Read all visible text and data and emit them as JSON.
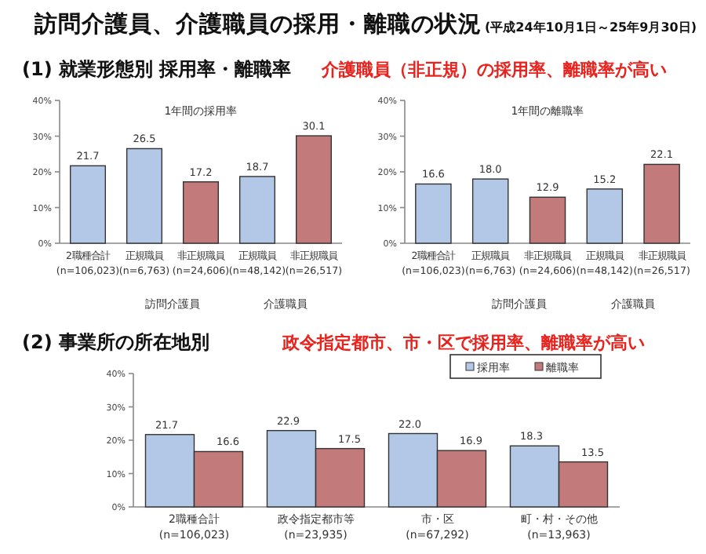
{
  "chart_data": [
    {
      "type": "other",
      "title": "訪問介護員、介護職員の採用・離職の状況",
      "subtitle": "(平成24年10月1日～25年9月30日)",
      "annotations": [
        "(1)  就業形態別  採用率・離職率",
        "介護職員（非正規）の採用率、離職率が高い",
        "(2)  事業所の所在地別",
        "政令指定都市、市・区で採用率、離職率が高い"
      ]
    },
    {
      "type": "bar",
      "title": "1年間の採用率",
      "categories": [
        "2職種合計\n(n=106,023)",
        "正規職員\n(n=6,763)",
        "非正規職員\n(n=24,606)",
        "正規職員\n(n=48,142)",
        "非正規職員\n(n=26,517)"
      ],
      "values": [
        21.7,
        26.5,
        17.2,
        18.7,
        30.1
      ],
      "colors": [
        "#b3c8e6",
        "#b3c8e6",
        "#c27a7a",
        "#b3c8e6",
        "#c27a7a"
      ],
      "ylim": [
        0,
        40
      ],
      "yticks": [
        {
          "value": 0,
          "label": "0%"
        },
        {
          "value": 10,
          "label": "10%"
        },
        {
          "value": 20,
          "label": "20%"
        },
        {
          "value": 30,
          "label": "30%"
        },
        {
          "value": 40,
          "label": "40%"
        }
      ],
      "data_labels": true,
      "annotations": [
        "訪問介護員",
        "介護職員"
      ]
    },
    {
      "type": "bar",
      "title": "1年間の離職率",
      "categories": [
        "2職種合計\n(n=106,023)",
        "正規職員\n(n=6,763)",
        "非正規職員\n(n=24,606)",
        "正規職員\n(n=48,142)",
        "非正規職員\n(n=26,517)"
      ],
      "values": [
        16.6,
        18.0,
        12.9,
        15.2,
        22.1
      ],
      "value_labels": [
        "16.6",
        "18.0",
        "12.9",
        "15.2",
        "22.1"
      ],
      "colors": [
        "#b3c8e6",
        "#b3c8e6",
        "#c27a7a",
        "#b3c8e6",
        "#c27a7a"
      ],
      "ylim": [
        0,
        40
      ],
      "yticks": [
        {
          "value": 0,
          "label": "0%"
        },
        {
          "value": 10,
          "label": "10%"
        },
        {
          "value": 20,
          "label": "20%"
        },
        {
          "value": 30,
          "label": "30%"
        },
        {
          "value": 40,
          "label": "40%"
        }
      ],
      "annotations": [
        "訪問介護員",
        "介護職員"
      ]
    },
    {
      "type": "bar",
      "categories": [
        "2職種合計\n(n=106,023)",
        "政令指定都市等\n(n=23,935)",
        "市・区\n(n=67,292)",
        "町・村・その他\n(n=13,963)"
      ],
      "series": [
        {
          "name": "採用率",
          "color": "#b3c8e6",
          "values": [
            21.7,
            22.9,
            22.0,
            18.3
          ],
          "value_labels": [
            "21.7",
            "22.9",
            "22.0",
            "18.3"
          ]
        },
        {
          "name": "離職率",
          "color": "#c27a7a",
          "values": [
            16.6,
            17.5,
            16.9,
            13.5
          ],
          "value_labels": [
            "16.6",
            "17.5",
            "16.9",
            "13.5"
          ]
        }
      ],
      "ylim": [
        0,
        40
      ],
      "yticks": [
        {
          "value": 0,
          "label": "0%"
        },
        {
          "value": 10,
          "label": "10%"
        },
        {
          "value": 20,
          "label": "20%"
        },
        {
          "value": 30,
          "label": "30%"
        },
        {
          "value": 40,
          "label": "40%"
        }
      ],
      "legend": "top right"
    }
  ]
}
